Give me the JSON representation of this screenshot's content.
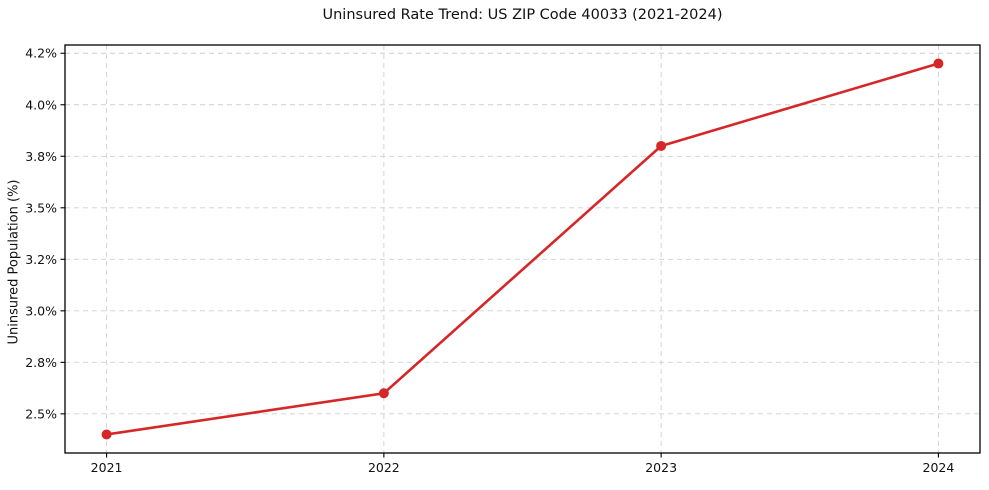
{
  "figure": {
    "background": "#ffffff"
  },
  "chart_data": {
    "type": "line",
    "title": "Uninsured Rate Trend: US ZIP Code 40033 (2021-2024)",
    "xlabel": "",
    "ylabel": "Uninsured Population (%)",
    "x": [
      2021,
      2022,
      2023,
      2024
    ],
    "series": [
      {
        "color": "#d62728",
        "marker": "circle",
        "values": [
          2.4,
          2.6,
          3.8,
          4.2
        ]
      }
    ],
    "xticks": [
      {
        "value": 2021,
        "label": "2021"
      },
      {
        "value": 2022,
        "label": "2022"
      },
      {
        "value": 2023,
        "label": "2023"
      },
      {
        "value": 2024,
        "label": "2024"
      }
    ],
    "yticks": [
      {
        "value": 2.5,
        "label": "2.5%"
      },
      {
        "value": 2.75,
        "label": "2.8%"
      },
      {
        "value": 3.0,
        "label": "3.0%"
      },
      {
        "value": 3.25,
        "label": "3.2%"
      },
      {
        "value": 3.5,
        "label": "3.5%"
      },
      {
        "value": 3.75,
        "label": "3.8%"
      },
      {
        "value": 4.0,
        "label": "4.0%"
      },
      {
        "value": 4.25,
        "label": "4.2%"
      }
    ],
    "xlim": [
      2020.85,
      2024.15
    ],
    "ylim": [
      2.31,
      4.29
    ],
    "grid": true,
    "grid_style": "dashed",
    "legend_position": "none",
    "grid_color": "#cfcfcf",
    "axis_color": "#000000",
    "text_color": "#111111"
  }
}
